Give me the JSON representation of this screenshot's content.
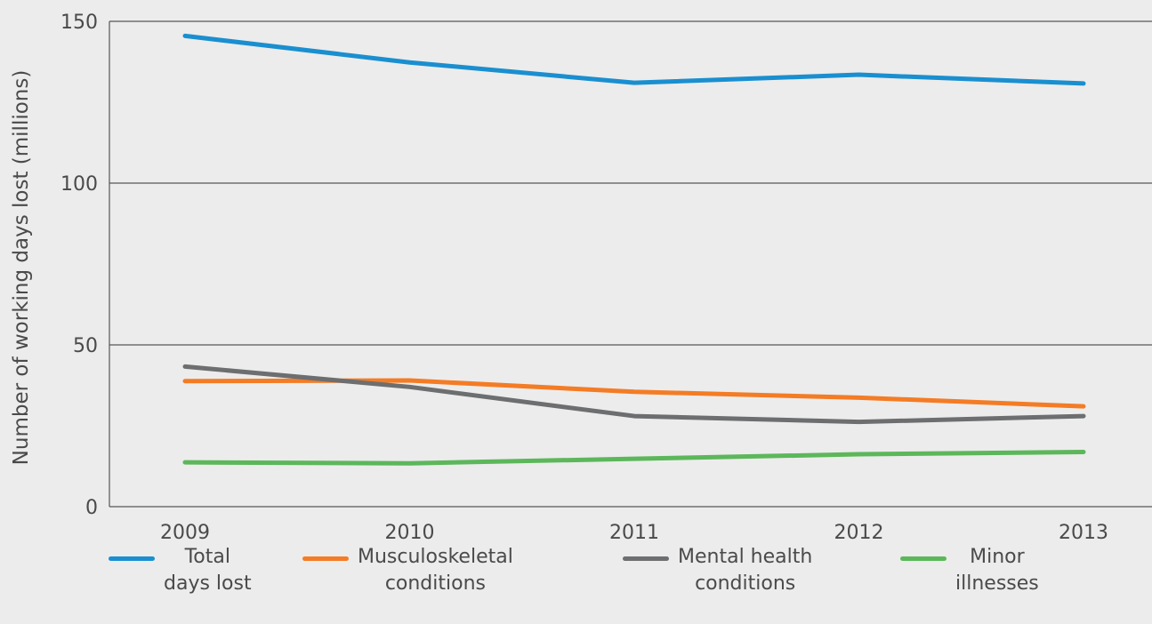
{
  "chart_data": {
    "type": "line",
    "x": [
      "2009",
      "2010",
      "2011",
      "2012",
      "2013"
    ],
    "ylabel": "Number of working days lost (millions)",
    "xlabel": "",
    "ylim": [
      0,
      150
    ],
    "yticks": [
      "0",
      "50",
      "100",
      "150"
    ],
    "grid": "horizontal",
    "legend_position": "bottom",
    "series": [
      {
        "name": "Total days lost",
        "name_lines": [
          "Total",
          "days lost"
        ],
        "color": "#1a8fd0",
        "values": [
          145.5,
          137.3,
          131.0,
          133.5,
          130.8
        ]
      },
      {
        "name": "Musculoskeletal conditions",
        "name_lines": [
          "Musculoskeletal",
          "conditions"
        ],
        "color": "#f47c25",
        "values": [
          38.8,
          39.0,
          35.5,
          33.7,
          31.0
        ]
      },
      {
        "name": "Mental health conditions",
        "name_lines": [
          "Mental health",
          "conditions"
        ],
        "color": "#6d6e70",
        "values": [
          43.3,
          37.0,
          28.0,
          26.2,
          28.0
        ]
      },
      {
        "name": "Minor illnesses",
        "name_lines": [
          "Minor",
          "illnesses"
        ],
        "color": "#5cb75a",
        "values": [
          13.7,
          13.4,
          14.8,
          16.2,
          16.9
        ]
      }
    ]
  }
}
